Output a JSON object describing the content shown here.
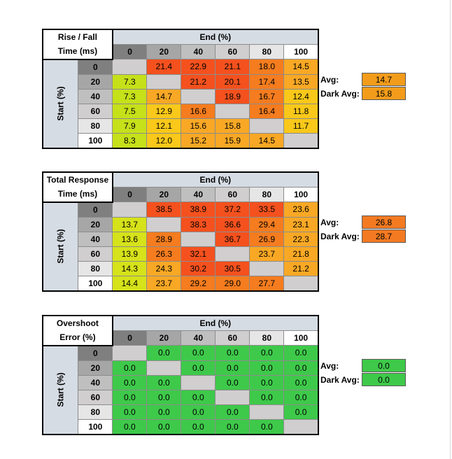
{
  "palette": {
    "diagonal": "#d0cece",
    "col_0": "#7f7f7f",
    "col_20": "#a6a6a6",
    "col_40": "#bfbfbf",
    "col_60": "#d0cece",
    "col_80": "#e7e6e6",
    "col_100": "#ffffff",
    "start_band": "#d6dce4"
  },
  "tables": [
    {
      "title_line1": "Rise / Fall",
      "title_line2": "Time (ms)",
      "end_label": "End (%)",
      "start_label": "Start (%)",
      "col_headers": [
        "0",
        "20",
        "40",
        "60",
        "80",
        "100"
      ],
      "row_headers": [
        "0",
        "20",
        "40",
        "60",
        "80",
        "100"
      ],
      "cells": [
        [
          "",
          "21.4",
          "22.9",
          "21.1",
          "18.0",
          "14.5"
        ],
        [
          "7.3",
          "",
          "21.2",
          "20.1",
          "17.4",
          "13.5"
        ],
        [
          "7.3",
          "14.7",
          "",
          "18.9",
          "16.7",
          "12.4"
        ],
        [
          "7.5",
          "12.9",
          "16.6",
          "",
          "16.4",
          "11.8"
        ],
        [
          "7.9",
          "12.1",
          "15.6",
          "15.8",
          "",
          "11.7"
        ],
        [
          "8.3",
          "12.0",
          "15.2",
          "15.9",
          "14.5",
          ""
        ]
      ],
      "colors": [
        [
          "#d0cece",
          "#f4511e",
          "#f4511e",
          "#f4511e",
          "#f57c1f",
          "#f9a825"
        ],
        [
          "#c6e01a",
          "#d0cece",
          "#f4511e",
          "#f4511e",
          "#f57c1f",
          "#f9a825"
        ],
        [
          "#c6e01a",
          "#f9a825",
          "#d0cece",
          "#f4511e",
          "#f57c1f",
          "#f9c81a"
        ],
        [
          "#c6e01a",
          "#f9c81a",
          "#f57c1f",
          "#d0cece",
          "#f57c1f",
          "#f9c81a"
        ],
        [
          "#c6e01a",
          "#f9c81a",
          "#f9a825",
          "#f9a825",
          "#d0cece",
          "#f9c81a"
        ],
        [
          "#c6e01a",
          "#f9c81a",
          "#f9a825",
          "#f9a825",
          "#f9a825",
          "#d0cece"
        ]
      ],
      "avg_label": "Avg:",
      "avg_value": "14.7",
      "avg_color": "#f39c1b",
      "dark_avg_label": "Dark Avg:",
      "dark_avg_value": "15.8",
      "dark_avg_color": "#f39c1b"
    },
    {
      "title_line1": "Total Response",
      "title_line2": "Time (ms)",
      "end_label": "End (%)",
      "start_label": "Start (%)",
      "col_headers": [
        "0",
        "20",
        "40",
        "60",
        "80",
        "100"
      ],
      "row_headers": [
        "0",
        "20",
        "40",
        "60",
        "80",
        "100"
      ],
      "cells": [
        [
          "",
          "38.5",
          "38.9",
          "37.2",
          "33.5",
          "23.6"
        ],
        [
          "13.7",
          "",
          "38.3",
          "36.6",
          "29.4",
          "23.1"
        ],
        [
          "13.6",
          "28.9",
          "",
          "36.7",
          "26.9",
          "22.3"
        ],
        [
          "13.9",
          "26.3",
          "32.1",
          "",
          "23.7",
          "21.8"
        ],
        [
          "14.3",
          "24.3",
          "30.2",
          "30.5",
          "",
          "21.2"
        ],
        [
          "14.4",
          "23.7",
          "29.2",
          "29.0",
          "27.7",
          ""
        ]
      ],
      "colors": [
        [
          "#d0cece",
          "#f4511e",
          "#f4511e",
          "#f4511e",
          "#f4511e",
          "#f9a825"
        ],
        [
          "#d6e21a",
          "#d0cece",
          "#f4511e",
          "#f4511e",
          "#f57c1f",
          "#f9a825"
        ],
        [
          "#d6e21a",
          "#f57c1f",
          "#d0cece",
          "#f4511e",
          "#f57c1f",
          "#f9a825"
        ],
        [
          "#d6e21a",
          "#f57c1f",
          "#f4511e",
          "#d0cece",
          "#f9a825",
          "#f9a825"
        ],
        [
          "#d6e21a",
          "#f9a825",
          "#f4511e",
          "#f4511e",
          "#d0cece",
          "#f9a825"
        ],
        [
          "#d6e21a",
          "#f9a825",
          "#f57c1f",
          "#f57c1f",
          "#f57c1f",
          "#d0cece"
        ]
      ],
      "avg_label": "Avg:",
      "avg_value": "26.8",
      "avg_color": "#f47a22",
      "dark_avg_label": "Dark Avg:",
      "dark_avg_value": "28.7",
      "dark_avg_color": "#f47a22"
    },
    {
      "title_line1": "Overshoot",
      "title_line2": "Error (%)",
      "end_label": "End (%)",
      "start_label": "Start (%)",
      "col_headers": [
        "0",
        "20",
        "40",
        "60",
        "80",
        "100"
      ],
      "row_headers": [
        "0",
        "20",
        "40",
        "60",
        "80",
        "100"
      ],
      "cells": [
        [
          "",
          "0.0",
          "0.0",
          "0.0",
          "0.0",
          "0.0"
        ],
        [
          "0.0",
          "",
          "0.0",
          "0.0",
          "0.0",
          "0.0"
        ],
        [
          "0.0",
          "0.0",
          "",
          "0.0",
          "0.0",
          "0.0"
        ],
        [
          "0.0",
          "0.0",
          "0.0",
          "",
          "0.0",
          "0.0"
        ],
        [
          "0.0",
          "0.0",
          "0.0",
          "0.0",
          "",
          "0.0"
        ],
        [
          "0.0",
          "0.0",
          "0.0",
          "0.0",
          "0.0",
          ""
        ]
      ],
      "colors": [
        [
          "#d0cece",
          "#3ec94a",
          "#3ec94a",
          "#3ec94a",
          "#3ec94a",
          "#3ec94a"
        ],
        [
          "#3ec94a",
          "#d0cece",
          "#3ec94a",
          "#3ec94a",
          "#3ec94a",
          "#3ec94a"
        ],
        [
          "#3ec94a",
          "#3ec94a",
          "#d0cece",
          "#3ec94a",
          "#3ec94a",
          "#3ec94a"
        ],
        [
          "#3ec94a",
          "#3ec94a",
          "#3ec94a",
          "#d0cece",
          "#3ec94a",
          "#3ec94a"
        ],
        [
          "#3ec94a",
          "#3ec94a",
          "#3ec94a",
          "#3ec94a",
          "#d0cece",
          "#3ec94a"
        ],
        [
          "#3ec94a",
          "#3ec94a",
          "#3ec94a",
          "#3ec94a",
          "#3ec94a",
          "#d0cece"
        ]
      ],
      "avg_label": "Avg:",
      "avg_value": "0.0",
      "avg_color": "#3ec94a",
      "dark_avg_label": "Dark Avg:",
      "dark_avg_value": "0.0",
      "dark_avg_color": "#3ec94a"
    }
  ]
}
